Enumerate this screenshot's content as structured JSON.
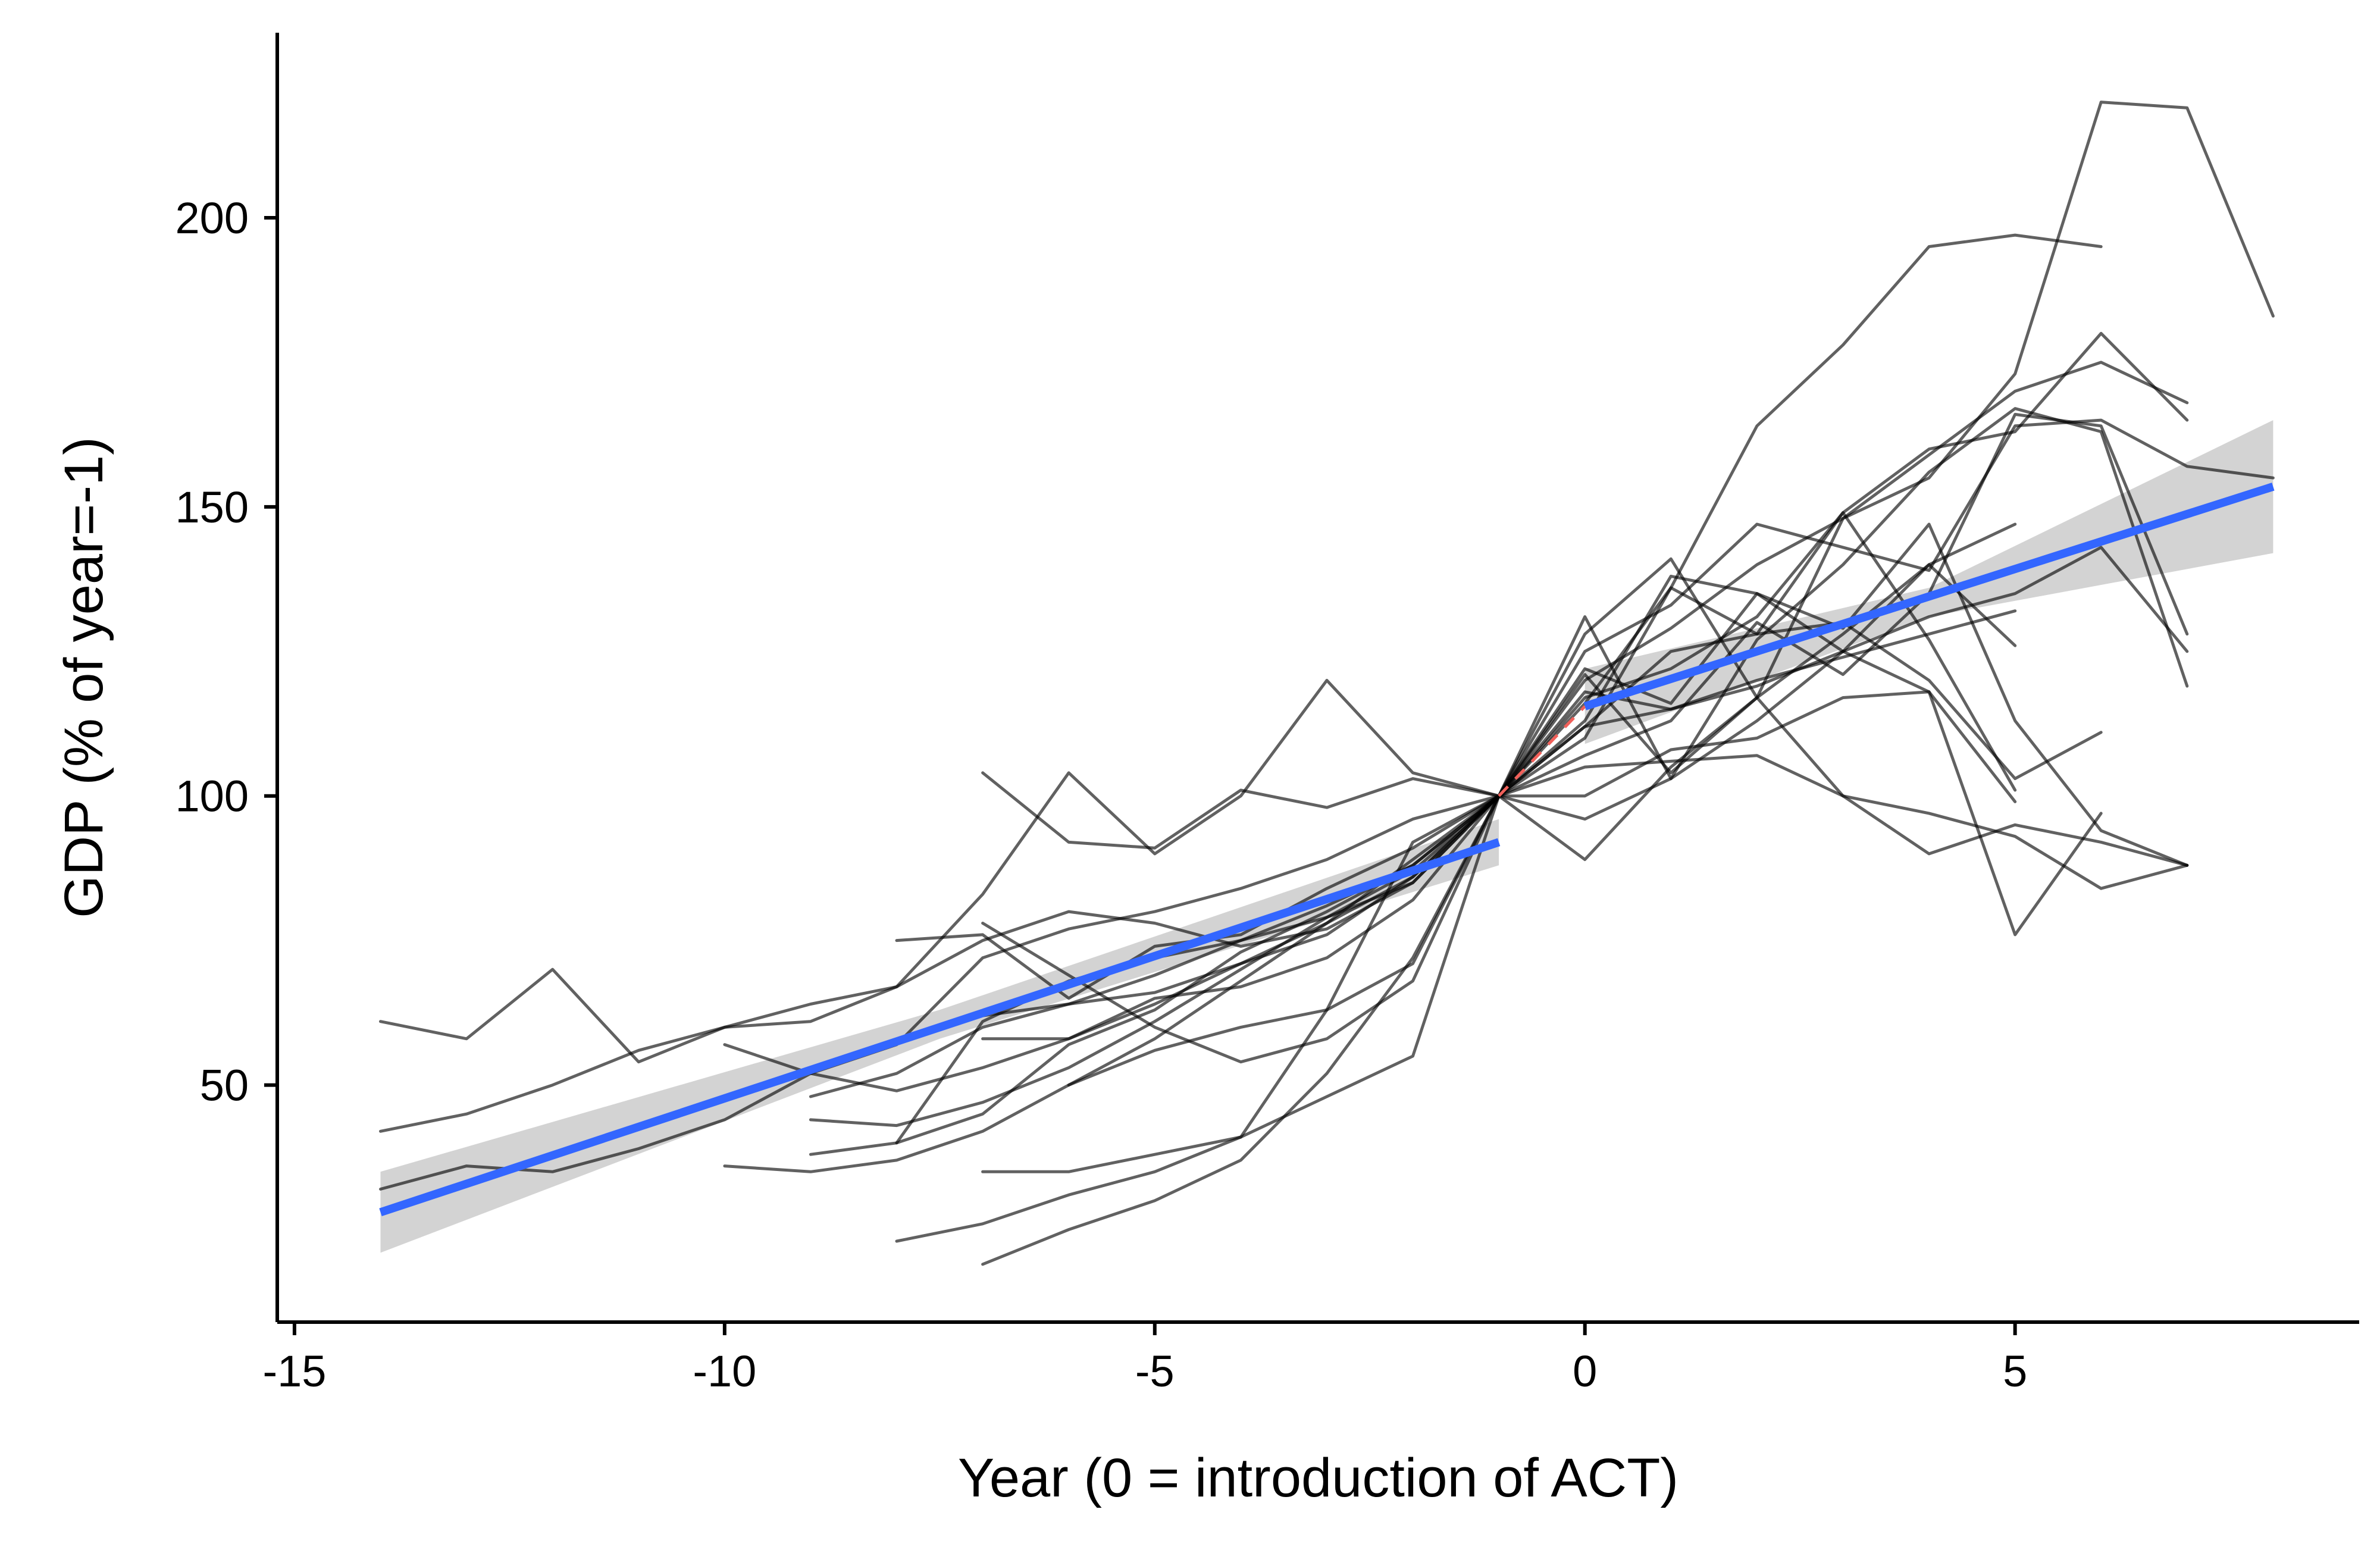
{
  "chart_data": {
    "type": "line",
    "title": "",
    "xlabel": "Year (0 = introduction of ACT)",
    "ylabel": "GDP (% of year=-1)",
    "xlim": [
      -15.2,
      9
    ],
    "ylim": [
      9,
      232
    ],
    "x_ticks": [
      -15,
      -10,
      -5,
      0,
      5
    ],
    "x_tick_labels": [
      "-15",
      "-10",
      "-5",
      "0",
      "5"
    ],
    "y_ticks": [
      50,
      100,
      150,
      200
    ],
    "y_tick_labels": [
      "50",
      "100",
      "150",
      "200"
    ],
    "grid": false,
    "legend": "none",
    "colors": {
      "country_lines": "#000000",
      "trend": "#3366ff",
      "confidence_band": "#d3d3d3",
      "connector": "#f0605a"
    },
    "series": [
      {
        "x": [
          -14,
          -13,
          -12,
          -11,
          -10,
          -9,
          -8,
          -7,
          -6,
          -5,
          -4,
          -3,
          -2,
          -1,
          0,
          1,
          2,
          3,
          4,
          5,
          6,
          7,
          8
        ],
        "y": [
          61,
          58,
          70,
          54,
          60,
          61,
          67,
          83,
          104,
          90,
          100,
          120,
          104,
          100,
          125,
          133,
          147,
          143,
          139,
          164,
          165,
          157,
          155
        ]
      },
      {
        "x": [
          -14,
          -13,
          -12,
          -11,
          -10,
          -9,
          -8,
          -7,
          -6,
          -5,
          -4,
          -3,
          -2,
          -1,
          0,
          1,
          2,
          3,
          4,
          5,
          6,
          7
        ],
        "y": [
          42,
          45,
          50,
          56,
          60,
          64,
          67,
          75,
          80,
          78,
          74,
          77,
          85,
          100,
          118,
          115,
          119,
          125,
          131,
          135,
          143,
          125
        ]
      },
      {
        "x": [
          -14,
          -13,
          -12,
          -11,
          -10,
          -9,
          -8,
          -7,
          -6,
          -5,
          -4,
          -3,
          -2,
          -1,
          0,
          1,
          2,
          3,
          4,
          5
        ],
        "y": [
          32,
          36,
          35,
          39,
          44,
          52,
          57,
          72,
          77,
          80,
          84,
          89,
          96,
          100,
          112,
          115,
          120,
          124,
          128,
          132
        ]
      },
      {
        "x": [
          -10,
          -9,
          -8,
          -7,
          -6,
          -5,
          -4,
          -3,
          -2,
          -1,
          0,
          1,
          2,
          3,
          4,
          5,
          6,
          7,
          8
        ],
        "y": [
          57,
          52,
          49,
          53,
          58,
          64,
          71,
          78,
          89,
          100,
          120,
          129,
          140,
          148,
          155,
          173,
          220,
          219,
          183
        ]
      },
      {
        "x": [
          -10,
          -9,
          -8,
          -7,
          -6,
          -5,
          -4,
          -3,
          -2,
          -1,
          0,
          1,
          2,
          3,
          4,
          5,
          6
        ],
        "y": [
          36,
          35,
          37,
          42,
          50,
          58,
          68,
          78,
          86,
          100,
          112,
          125,
          128,
          130,
          120,
          103,
          111
        ]
      },
      {
        "x": [
          -9,
          -8,
          -7,
          -6,
          -5,
          -4,
          -3,
          -2,
          -1,
          0,
          1,
          2,
          3,
          4,
          5,
          6,
          7
        ],
        "y": [
          48,
          52,
          60,
          64,
          69,
          75,
          81,
          88,
          100,
          116,
          136,
          128,
          149,
          160,
          163,
          180,
          165
        ]
      },
      {
        "x": [
          -9,
          -8,
          -7,
          -6,
          -5,
          -4,
          -3,
          -2,
          -1,
          0,
          1,
          2,
          3,
          4,
          5,
          6,
          7
        ],
        "y": [
          44,
          43,
          47,
          53,
          61,
          70,
          79,
          87,
          100,
          121,
          104,
          117,
          148,
          159,
          170,
          175,
          168
        ]
      },
      {
        "x": [
          -9,
          -8,
          -7,
          -6,
          -5,
          -4,
          -3,
          -2,
          -1,
          0,
          1,
          2,
          3,
          4,
          5
        ],
        "y": [
          38,
          40,
          45,
          57,
          63,
          73,
          80,
          88,
          100,
          113,
          138,
          135,
          125,
          118,
          99
        ]
      },
      {
        "x": [
          -8,
          -7,
          -6,
          -5,
          -4,
          -3,
          -2,
          -1,
          0,
          1,
          2,
          3,
          4,
          5,
          6,
          7
        ],
        "y": [
          40,
          61,
          68,
          72,
          75,
          79,
          85,
          100,
          107,
          113,
          130,
          121,
          135,
          166,
          164,
          128
        ]
      },
      {
        "x": [
          -8,
          -7,
          -6,
          -5,
          -4,
          -3,
          -2,
          -1,
          0,
          1,
          2,
          3,
          4,
          5,
          6,
          7
        ],
        "y": [
          75,
          76,
          65,
          74,
          76,
          84,
          91,
          100,
          128,
          141,
          117,
          100,
          97,
          93,
          84,
          88
        ]
      },
      {
        "x": [
          -7,
          -6,
          -5,
          -4,
          -3,
          -2,
          -1,
          0,
          1,
          2,
          3,
          4,
          5,
          6,
          7
        ],
        "y": [
          104,
          92,
          91,
          101,
          98,
          103,
          100,
          131,
          103,
          127,
          140,
          156,
          167,
          163,
          119
        ]
      },
      {
        "x": [
          -7,
          -6,
          -5,
          -4,
          -3,
          -2,
          -1,
          0,
          1,
          2,
          3,
          4,
          5,
          6
        ],
        "y": [
          78,
          69,
          60,
          54,
          58,
          68,
          100,
          110,
          136,
          164,
          178,
          195,
          197,
          195
        ]
      },
      {
        "x": [
          -7,
          -6,
          -5,
          -4,
          -3,
          -2,
          -1,
          0,
          1,
          2,
          3,
          4,
          5
        ],
        "y": [
          62,
          64,
          66,
          71,
          76,
          86,
          100,
          117,
          122,
          131,
          149,
          127,
          101
        ]
      },
      {
        "x": [
          -7,
          -6,
          -5,
          -4,
          -3,
          -2,
          -1,
          0,
          1,
          2,
          3,
          4,
          5,
          6
        ],
        "y": [
          58,
          58,
          65,
          67,
          72,
          82,
          100,
          100,
          108,
          110,
          117,
          118,
          76,
          97
        ]
      },
      {
        "x": [
          -7,
          -6,
          -5,
          -4,
          -3,
          -2,
          -1,
          0,
          1,
          2,
          3,
          4,
          5,
          6,
          7
        ],
        "y": [
          35,
          35,
          38,
          41,
          48,
          55,
          100,
          122,
          116,
          135,
          129,
          147,
          113,
          94,
          88
        ]
      },
      {
        "x": [
          -7,
          -6,
          -5,
          -4,
          -3,
          -2,
          -1,
          0,
          1,
          2,
          3,
          4,
          5,
          6,
          7
        ],
        "y": [
          19,
          25,
          30,
          37,
          52,
          72,
          100,
          105,
          106,
          107,
          100,
          90,
          95,
          92,
          88
        ]
      },
      {
        "x": [
          -8,
          -7,
          -6,
          -5,
          -4,
          -3,
          -2,
          -1,
          0,
          1,
          2,
          3,
          4,
          5
        ],
        "y": [
          23,
          26,
          31,
          35,
          41,
          63,
          92,
          100,
          96,
          103,
          113,
          125,
          140,
          147
        ]
      },
      {
        "x": [
          -6,
          -5,
          -4,
          -3,
          -2,
          -1,
          0,
          1,
          2,
          3,
          4,
          5
        ],
        "y": [
          50,
          56,
          60,
          63,
          71,
          100,
          89,
          105,
          117,
          128,
          140,
          126
        ]
      }
    ],
    "trend_pre": {
      "x": [
        -14,
        -1
      ],
      "y": [
        28,
        92
      ]
    },
    "trend_post": {
      "x": [
        0,
        8
      ],
      "y": [
        115.5,
        153.5
      ]
    },
    "confidence_band_pre": {
      "x": [
        -14,
        -7.5,
        -1
      ],
      "lower": [
        21,
        58,
        88
      ],
      "upper": [
        35,
        63,
        96
      ]
    },
    "confidence_band_post": {
      "x": [
        0,
        4,
        8
      ],
      "lower": [
        109,
        131,
        142
      ],
      "upper": [
        122,
        136,
        165
      ]
    },
    "connector": {
      "x": [
        -1,
        0
      ],
      "y": [
        100,
        115.5
      ]
    }
  }
}
